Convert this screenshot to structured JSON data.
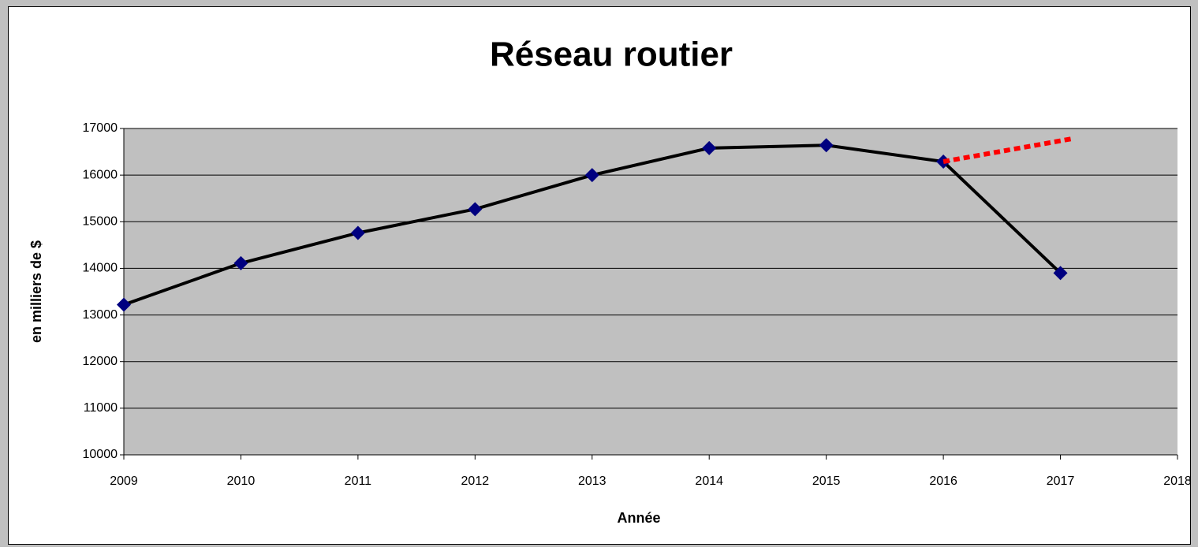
{
  "chart_data": {
    "type": "line",
    "title": "Réseau routier",
    "xlabel": "Année",
    "ylabel": "en milliers de $",
    "xlim": [
      2009,
      2018
    ],
    "xticks": [
      2009,
      2010,
      2011,
      2012,
      2013,
      2014,
      2015,
      2016,
      2017,
      2018
    ],
    "ylim": [
      10000,
      17000
    ],
    "yticks": [
      10000,
      11000,
      12000,
      13000,
      14000,
      15000,
      16000,
      17000
    ],
    "grid": true,
    "plot_background": "#c0c0c0",
    "series": [
      {
        "color": "#000000",
        "marker": "diamond",
        "marker_color": "#000080",
        "dash": false,
        "x": [
          2009,
          2010,
          2011,
          2012,
          2013,
          2014,
          2015,
          2016,
          2017
        ],
        "values": [
          13220,
          14110,
          14760,
          15270,
          16000,
          16580,
          16640,
          16290,
          13900
        ]
      },
      {
        "color": "#ff0000",
        "marker": "none",
        "dash": true,
        "x": [
          2016,
          2017.1
        ],
        "values": [
          16290,
          16780
        ]
      }
    ]
  }
}
